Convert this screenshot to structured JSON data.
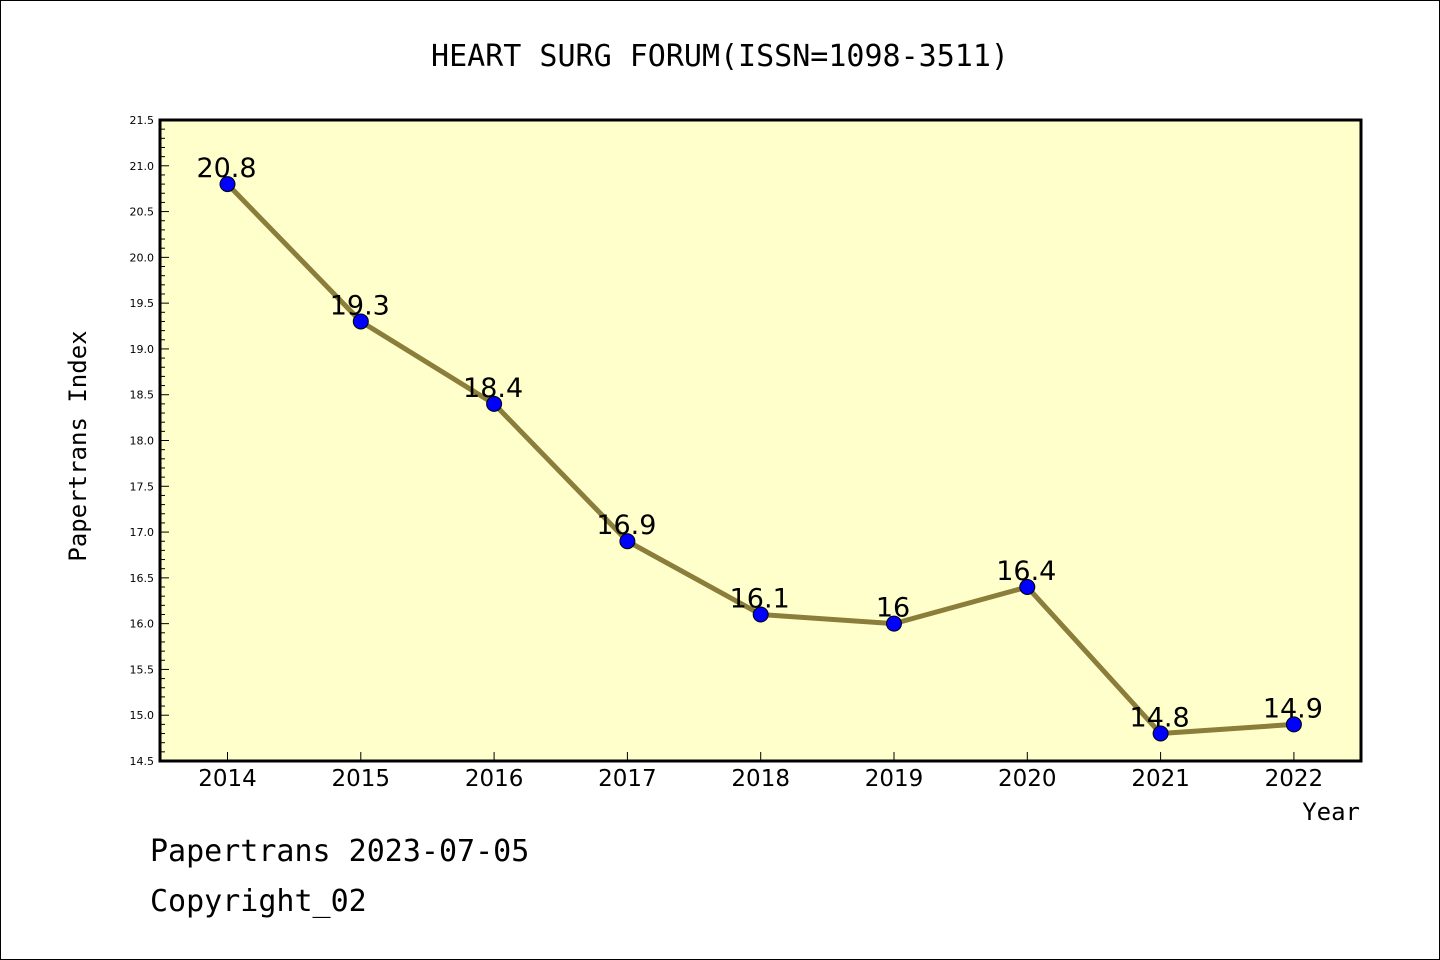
{
  "chart_data": {
    "type": "line",
    "title": "HEART SURG FORUM(ISSN=1098-3511)",
    "xlabel": "Year",
    "ylabel": "Papertrans Index",
    "categories": [
      "2014",
      "2015",
      "2016",
      "2017",
      "2018",
      "2019",
      "2020",
      "2021",
      "2022"
    ],
    "series": [
      {
        "name": "Papertrans Index",
        "values": [
          20.8,
          19.3,
          18.4,
          16.9,
          16.1,
          16.0,
          16.4,
          14.8,
          14.9
        ],
        "labels": [
          "20.8",
          "19.3",
          "18.4",
          "16.9",
          "16.1",
          "16",
          "16.4",
          "14.8",
          "14.9"
        ]
      }
    ],
    "ylim": [
      14.5,
      21.5
    ],
    "yticks": [
      "14.5",
      "15.0",
      "15.5",
      "16.0",
      "16.5",
      "17.0",
      "17.5",
      "18.0",
      "18.5",
      "19.0",
      "19.5",
      "20.0",
      "20.5",
      "21.0",
      "21.5"
    ],
    "colors": {
      "plot_background": "#ffffcc",
      "line": "#8b7d3a",
      "marker": "#0000ff"
    }
  },
  "footer": {
    "date_line": "Papertrans 2023-07-05",
    "copyright": "Copyright_02"
  }
}
